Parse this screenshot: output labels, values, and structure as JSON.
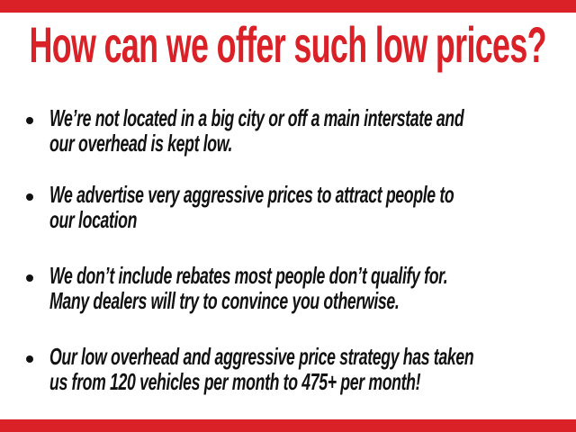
{
  "slide": {
    "background_color": "#ffffff",
    "accent_color": "#da2127",
    "ink_color": "#111111",
    "title": "How can we offer such low prices?",
    "bullets": [
      {
        "lines": [
          "We’re not located in a big city or off a main interstate and",
          "our overhead is kept low."
        ]
      },
      {
        "lines": [
          "We advertise very aggressive prices to attract people to",
          "our location"
        ]
      },
      {
        "lines": [
          "We don’t include rebates most people don’t qualify for.",
          "Many dealers will try to convince you otherwise."
        ]
      },
      {
        "lines": [
          "Our low overhead and aggressive price strategy has taken",
          "us from 120 vehicles per month to 475+ per month!"
        ]
      }
    ]
  }
}
